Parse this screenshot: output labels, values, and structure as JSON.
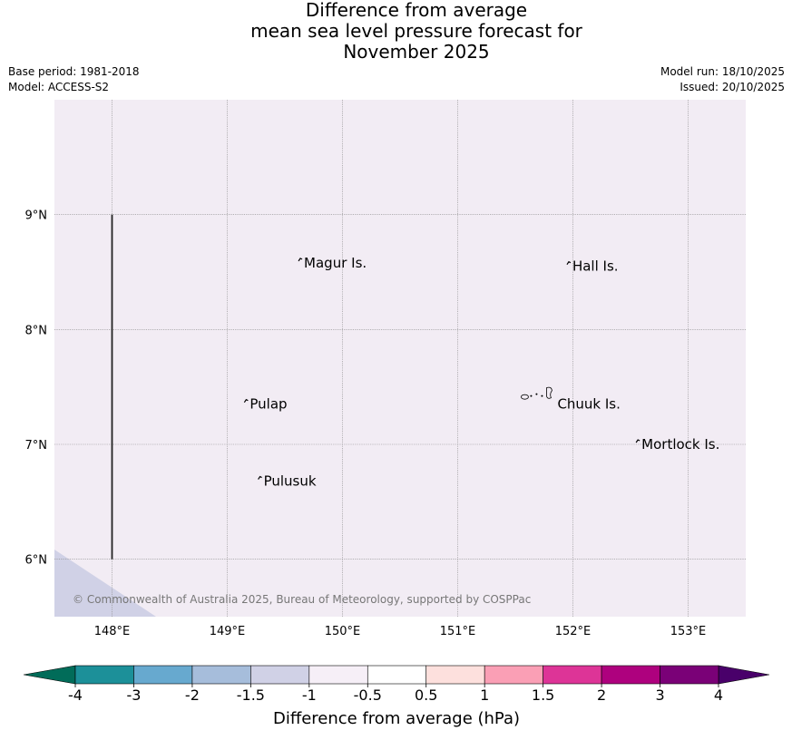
{
  "title": {
    "line1": "Difference from average",
    "line2": "mean sea level pressure forecast for",
    "line3": "November 2025"
  },
  "meta": {
    "base_period": "Base period: 1981-2018",
    "model": "Model: ACCESS-S2",
    "model_run": "Model run: 18/10/2025",
    "issued": "Issued: 20/10/2025"
  },
  "map": {
    "lon_range": [
      147.5,
      153.5
    ],
    "lat_range": [
      5.5,
      10.0
    ],
    "lon_ticks": [
      148,
      149,
      150,
      151,
      152,
      153
    ],
    "lon_tick_labels": [
      "148°E",
      "149°E",
      "150°E",
      "151°E",
      "152°E",
      "153°E"
    ],
    "lat_ticks": [
      6,
      7,
      8,
      9
    ],
    "lat_tick_labels": [
      "6°N",
      "7°N",
      "8°N",
      "9°N"
    ],
    "gridlines": true,
    "background_color": "#f2ecf4",
    "lower_shade_color": "#d0d1e6",
    "places": [
      {
        "name": "Magur Is.",
        "lon": 149.65,
        "lat": 8.58
      },
      {
        "name": "Hall Is.",
        "lon": 151.98,
        "lat": 8.55
      },
      {
        "name": "Pulap",
        "lon": 149.18,
        "lat": 7.35
      },
      {
        "name": "Chuuk Is.",
        "lon": 151.85,
        "lat": 7.35
      },
      {
        "name": "Mortlock Is.",
        "lon": 152.58,
        "lat": 7.0
      },
      {
        "name": "Pulusuk",
        "lon": 149.3,
        "lat": 6.68
      }
    ],
    "boundary_line": {
      "lon": 148.0,
      "lat_from": 6.0,
      "lat_to": 9.0
    },
    "copyright": "© Commonwealth of Australia 2025, Bureau of Meteorology, supported by COSPPac"
  },
  "colorbar": {
    "title": "Difference from average (hPa)",
    "labels": [
      "-4",
      "-3",
      "-2",
      "-1.5",
      "-1",
      "-0.5",
      "0.5",
      "1",
      "1.5",
      "2",
      "3",
      "4"
    ],
    "low_extend_color": "#016c59",
    "high_extend_color": "#49006a",
    "colors": [
      "#1c9099",
      "#67a9cf",
      "#a6bddb",
      "#d0d1e6",
      "#f6eff7",
      "#ffffff",
      "#fde0dd",
      "#fa9fb5",
      "#dd3497",
      "#ae017e",
      "#7a0177"
    ]
  }
}
